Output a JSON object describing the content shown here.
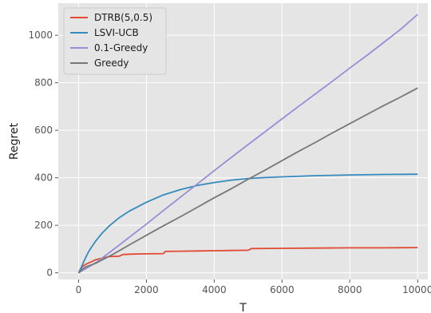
{
  "chart_data": {
    "type": "line",
    "title": "",
    "xlabel": "T",
    "ylabel": "Regret",
    "xlim": [
      -600,
      10300
    ],
    "ylim": [
      -28,
      1135
    ],
    "xticks": [
      0,
      2000,
      4000,
      6000,
      8000,
      10000
    ],
    "xtick_labels": [
      "0",
      "2000",
      "4000",
      "6000",
      "8000",
      "10000"
    ],
    "yticks": [
      0,
      200,
      400,
      600,
      800,
      1000
    ],
    "ytick_labels": [
      "0",
      "200",
      "400",
      "600",
      "800",
      "1000"
    ],
    "grid": true,
    "legend_position": "top-left",
    "background": "#e5e5e5",
    "series": [
      {
        "name": "DTRB(5,0.5)",
        "color": "#e24a33",
        "x": [
          0,
          100,
          200,
          300,
          400,
          500,
          700,
          900,
          1200,
          1300,
          1600,
          2000,
          2500,
          2560,
          3000,
          3500,
          4000,
          4500,
          5000,
          5100,
          6000,
          7000,
          8000,
          9000,
          10000
        ],
        "y": [
          0,
          25,
          35,
          42,
          48,
          55,
          62,
          68,
          70,
          77,
          79,
          80,
          81,
          90,
          91,
          92,
          93,
          94,
          95,
          102,
          103,
          104,
          105,
          105,
          106
        ]
      },
      {
        "name": "LSVI-UCB",
        "color": "#348abd",
        "x": [
          0,
          100,
          200,
          300,
          400,
          500,
          700,
          900,
          1200,
          1500,
          2000,
          2500,
          3000,
          3500,
          4000,
          4500,
          5000,
          5500,
          6000,
          7000,
          8000,
          9000,
          10000
        ],
        "y": [
          0,
          30,
          62,
          90,
          112,
          133,
          168,
          197,
          232,
          260,
          297,
          328,
          350,
          368,
          380,
          390,
          397,
          401,
          404,
          409,
          412,
          414,
          415
        ]
      },
      {
        "name": "0.1-Greedy",
        "color": "#988ed5",
        "x": [
          0,
          500,
          1000,
          1500,
          2000,
          2500,
          3000,
          3500,
          4000,
          4500,
          5000,
          5500,
          6000,
          6500,
          7000,
          7500,
          8000,
          8500,
          9000,
          9500,
          10000
        ],
        "y": [
          0,
          42,
          95,
          150,
          205,
          262,
          318,
          374,
          430,
          485,
          540,
          594,
          648,
          702,
          755,
          808,
          862,
          915,
          970,
          1025,
          1088
        ]
      },
      {
        "name": "Greedy",
        "color": "#777777",
        "x": [
          0,
          100,
          200,
          500,
          1000,
          1500,
          2000,
          2500,
          3000,
          3500,
          4000,
          4500,
          5000,
          5500,
          6000,
          6500,
          7000,
          7500,
          8000,
          8500,
          9000,
          9500,
          10000
        ],
        "y": [
          0,
          14,
          24,
          40,
          77,
          118,
          158,
          198,
          236,
          276,
          316,
          354,
          394,
          432,
          472,
          512,
          550,
          590,
          628,
          666,
          704,
          740,
          778
        ]
      }
    ]
  }
}
